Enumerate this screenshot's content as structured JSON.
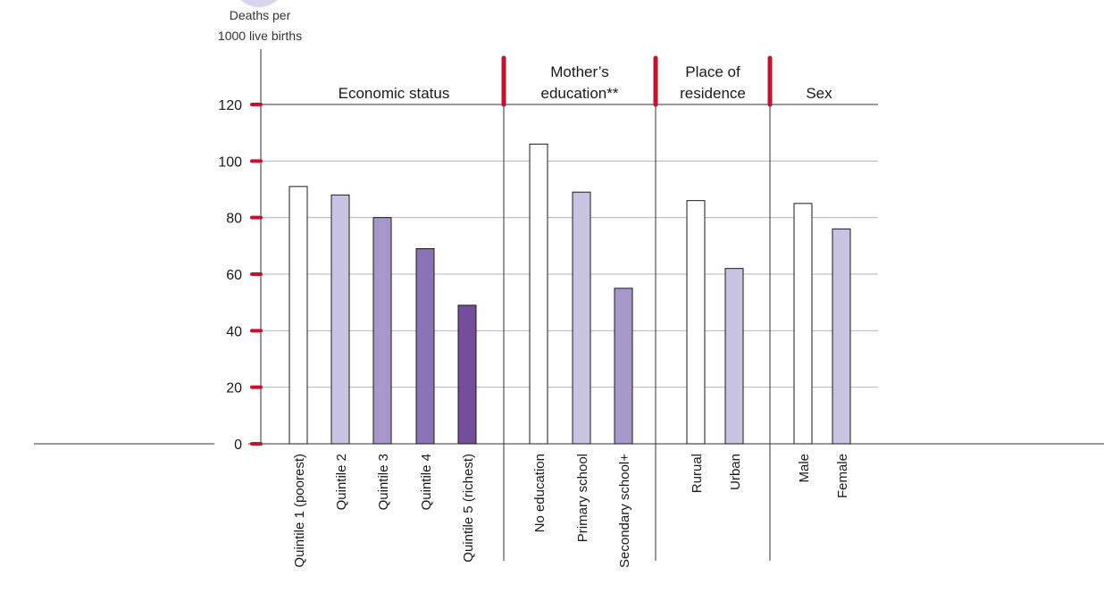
{
  "chart_data": {
    "type": "bar",
    "ylabel_line1": "Deaths per",
    "ylabel_line2": "1000 live births",
    "ylim": [
      0,
      120
    ],
    "yticks": [
      0,
      20,
      40,
      60,
      80,
      100,
      120
    ],
    "grid": true,
    "groups": [
      {
        "label_lines": [
          "Economic status"
        ],
        "categories": [
          "Quintile 1 (poorest)",
          "Quintile 2",
          "Quintile 3",
          "Quintile 4",
          "Quintile 5 (richest)"
        ],
        "values": [
          91,
          88,
          80,
          69,
          49
        ],
        "colors": [
          "#ffffff",
          "#c9c3e3",
          "#a898c9",
          "#8b74b5",
          "#744d9d"
        ]
      },
      {
        "label_lines": [
          "Mother’s",
          "education**"
        ],
        "categories": [
          "No education",
          "Primary school",
          "Secondary school+"
        ],
        "values": [
          106,
          89,
          55
        ],
        "colors": [
          "#ffffff",
          "#c9c3e3",
          "#a898c9"
        ]
      },
      {
        "label_lines": [
          "Place of",
          "residence"
        ],
        "categories": [
          "Rurual",
          "Urban"
        ],
        "values": [
          86,
          62
        ],
        "colors": [
          "#ffffff",
          "#c9c3e3"
        ]
      },
      {
        "label_lines": [
          "Sex"
        ],
        "categories": [
          "Male",
          "Female"
        ],
        "values": [
          85,
          76
        ],
        "colors": [
          "#ffffff",
          "#c9c3e3"
        ]
      }
    ],
    "tick_marker_color": "#c8102e"
  }
}
